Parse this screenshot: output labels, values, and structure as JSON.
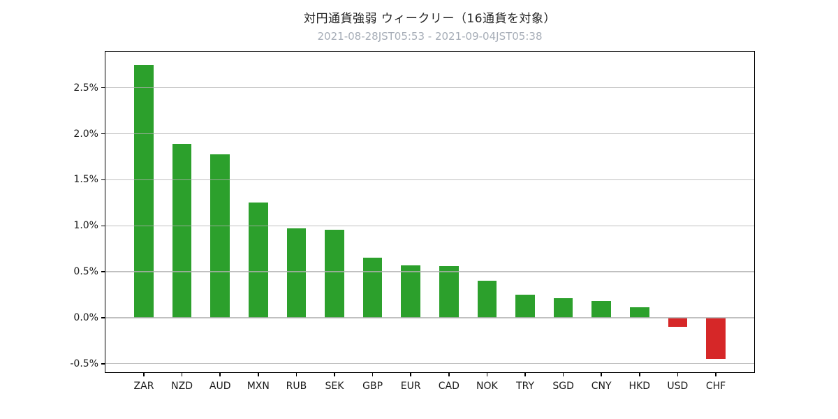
{
  "chart_data": {
    "type": "bar",
    "title": "対円通貨強弱 ウィークリー（16通貨を対象）",
    "subtitle": "2021-08-28JST05:53 - 2021-09-04JST05:38",
    "categories": [
      "ZAR",
      "NZD",
      "AUD",
      "MXN",
      "RUB",
      "SEK",
      "GBP",
      "EUR",
      "CAD",
      "NOK",
      "TRY",
      "SGD",
      "CNY",
      "HKD",
      "USD",
      "CHF"
    ],
    "values": [
      2.75,
      1.89,
      1.78,
      1.25,
      0.97,
      0.96,
      0.65,
      0.57,
      0.56,
      0.4,
      0.25,
      0.21,
      0.18,
      0.11,
      -0.1,
      -0.45
    ],
    "value_unit": "%",
    "xlabel": "",
    "ylabel": "",
    "ylim": [
      -0.6,
      2.9
    ],
    "y_ticks": [
      2.5,
      2.0,
      1.5,
      1.0,
      0.5,
      0.0,
      -0.5
    ],
    "y_tick_labels": [
      "2.5%",
      "2.0%",
      "1.5%",
      "1.0%",
      "0.5%",
      "0.0%",
      "-0.5%"
    ],
    "grid": true,
    "legend_position": "none",
    "colors": {
      "positive_bar": "#2ca02c",
      "negative_bar": "#d62728",
      "grid": "rgba(176,176,176,0.8)",
      "title_text": "#1f1f1f",
      "subtitle_text": "#a6adb7",
      "axis_text": "#1a1a1a",
      "spine": "#000000",
      "background": "#ffffff"
    }
  }
}
